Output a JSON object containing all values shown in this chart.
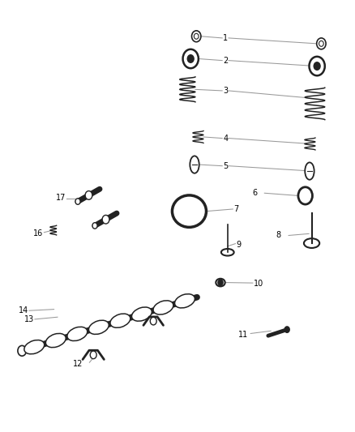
{
  "bg_color": "#ffffff",
  "line_color": "#999999",
  "part_color": "#222222",
  "fig_width": 4.38,
  "fig_height": 5.33,
  "dpi": 100
}
